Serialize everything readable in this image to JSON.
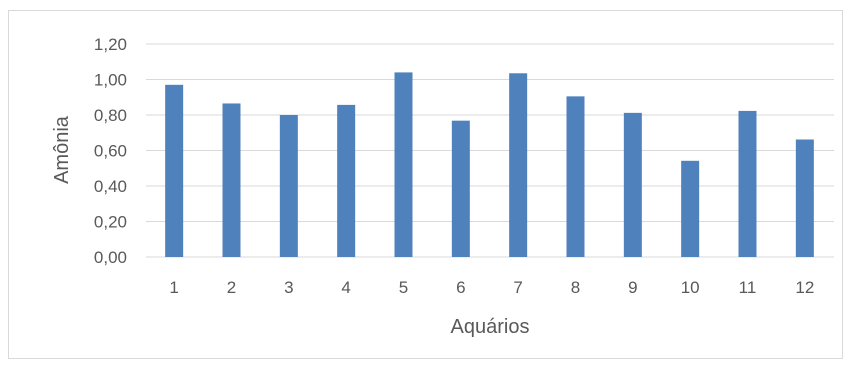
{
  "chart_data": {
    "type": "bar",
    "title": "",
    "xlabel": "Aquários",
    "ylabel": "Amônia",
    "categories": [
      "1",
      "2",
      "3",
      "4",
      "5",
      "6",
      "7",
      "8",
      "9",
      "10",
      "11",
      "12"
    ],
    "values": [
      0.97,
      0.865,
      0.8,
      0.857,
      1.04,
      0.768,
      1.035,
      0.905,
      0.812,
      0.542,
      0.823,
      0.662
    ],
    "ylim": [
      0,
      1.2
    ],
    "yticks": [
      "0,00",
      "0,20",
      "0,40",
      "0,60",
      "0,80",
      "1,00",
      "1,20"
    ],
    "grid": true,
    "legend": "none",
    "bar_color": "#4f81bd",
    "grid_color": "#d9d9d9"
  }
}
